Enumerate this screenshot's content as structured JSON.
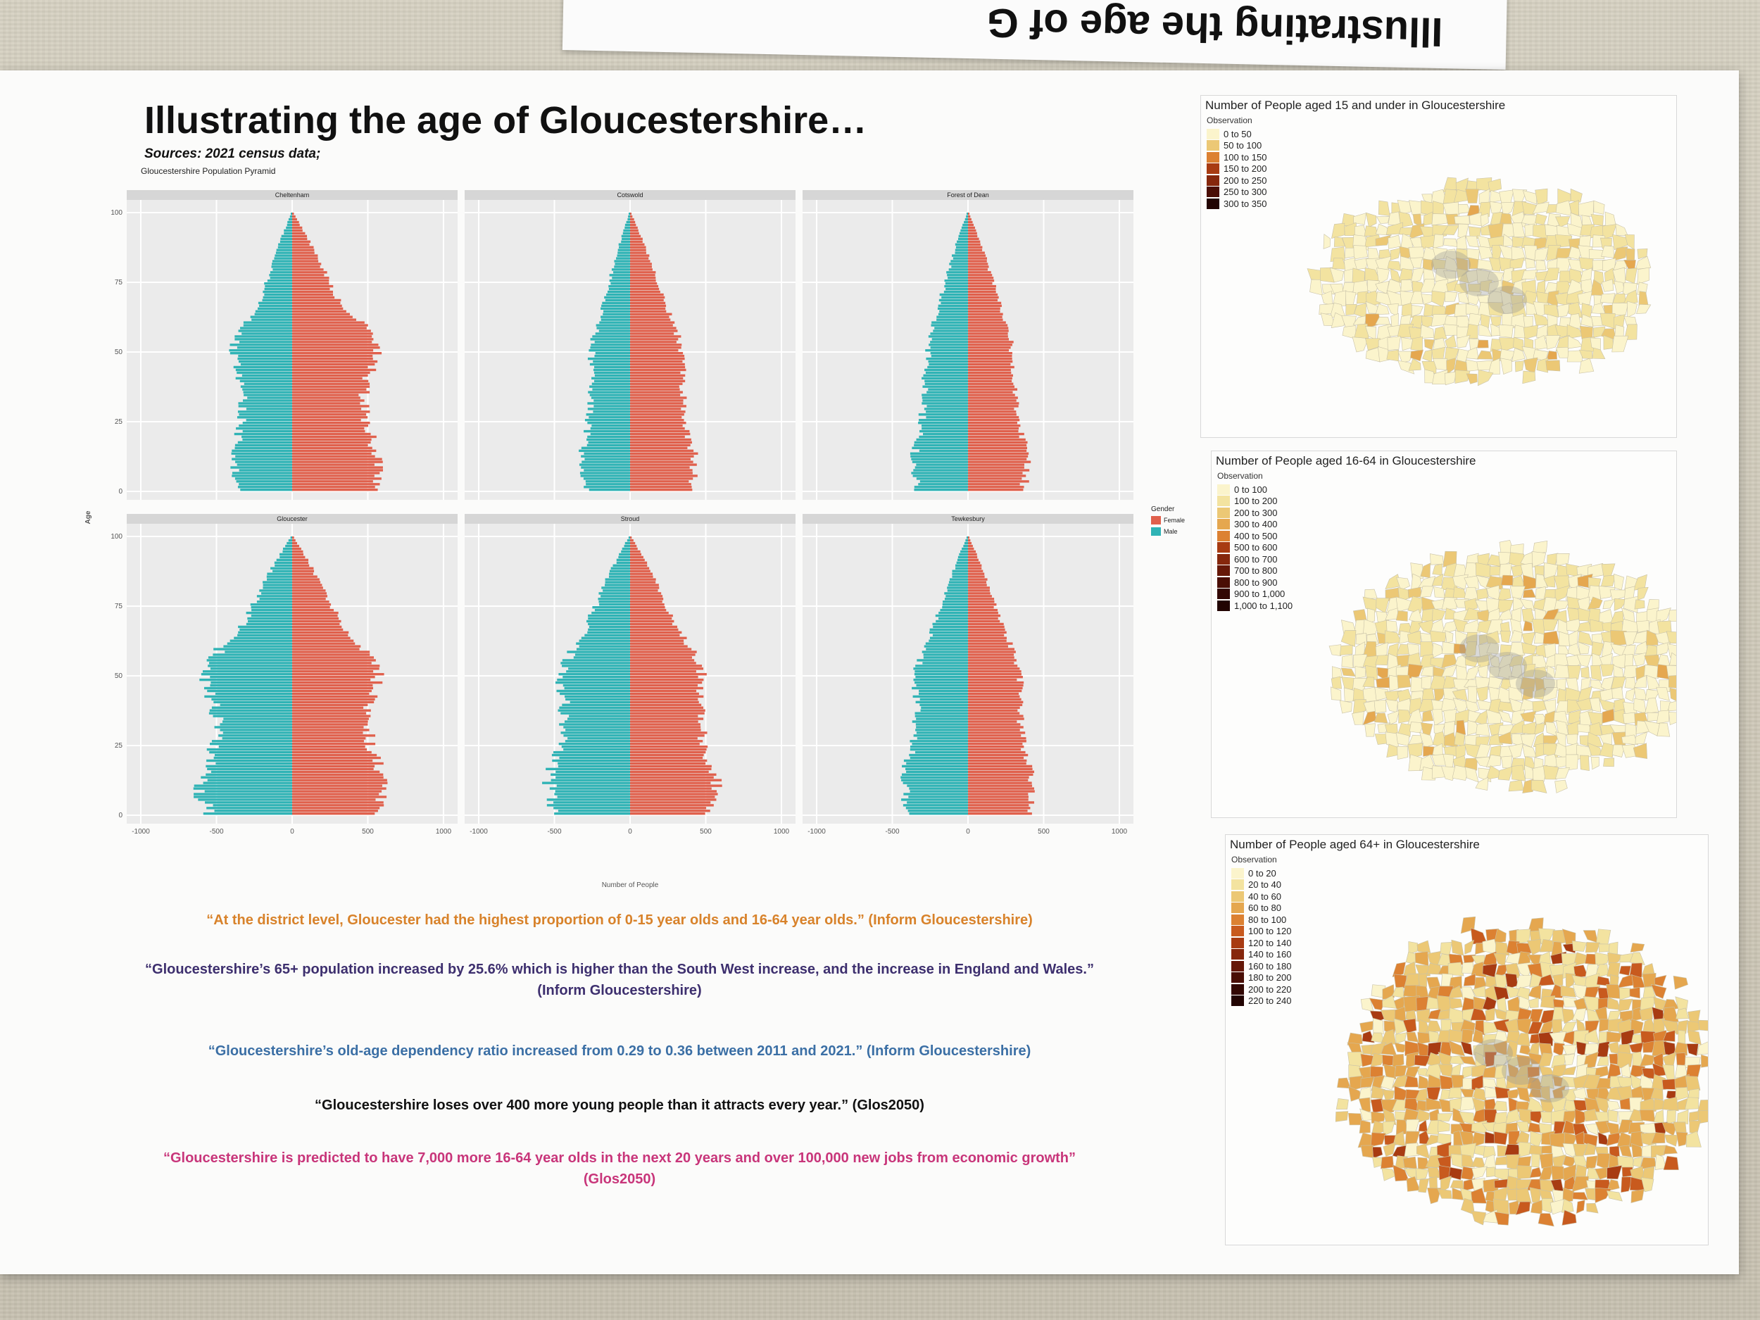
{
  "top_sheet_text": "Illustrating the age of G",
  "poster": {
    "title": "Illustrating the age of Gloucestershire…",
    "sources": "Sources: 2021 census data;",
    "pyramid_caption": "Gloucestershire Population Pyramid"
  },
  "pyramid": {
    "y_label": "Age",
    "x_label": "Number of People",
    "y_ticks": [
      "0",
      "25",
      "50",
      "75",
      "100"
    ],
    "x_ticks": [
      "-1000",
      "-500",
      "0",
      "500",
      "1000"
    ],
    "panels": [
      "Cheltenham",
      "Cotswold",
      "Forest of Dean",
      "Gloucester",
      "Stroud",
      "Tewkesbury"
    ],
    "legend_title": "Gender",
    "legend_items": [
      {
        "label": "Female",
        "color": "#e0604c"
      },
      {
        "label": "Male",
        "color": "#2fb3b5"
      }
    ]
  },
  "quotes": [
    "“At the district level, Gloucester had the highest proportion of 0-15 year olds and 16-64 year olds.” (Inform Gloucestershire)",
    "“Gloucestershire’s 65+ population increased by 25.6% which is higher than the South West increase, and the increase in England and Wales.”",
    "(Inform Gloucestershire)",
    "“Gloucestershire’s old-age dependency ratio increased from 0.29 to 0.36 between 2011 and 2021.” (Inform Gloucestershire)",
    "“Gloucestershire loses over 400 more young people than it attracts every year.” (Glos2050)",
    "“Gloucestershire is predicted to have 7,000 more 16-64 year olds in the next 20 years and over 100,000 new jobs from economic growth”",
    "(Glos2050)"
  ],
  "maps": [
    {
      "title": "Number of People aged 15 and under in Gloucestershire",
      "observation": "Observation",
      "legend": [
        "0 to 50",
        "50 to 100",
        "100 to 150",
        "150 to 200",
        "200 to 250",
        "250 to 300",
        "300 to 350"
      ]
    },
    {
      "title": "Number of People aged 16-64 in Gloucestershire",
      "observation": "Observation",
      "legend": [
        "0 to 100",
        "100 to 200",
        "200 to 300",
        "300 to 400",
        "400 to 500",
        "500 to 600",
        "600 to 700",
        "700 to 800",
        "800 to 900",
        "900 to 1,000",
        "1,000 to 1,100"
      ]
    },
    {
      "title": "Number of People aged 64+ in Gloucestershire",
      "observation": "Observation",
      "legend": [
        "0 to 20",
        "20 to 40",
        "40 to 60",
        "60 to 80",
        "80 to 100",
        "100 to 120",
        "120 to 140",
        "140 to 160",
        "160 to 180",
        "180 to 200",
        "200 to 220",
        "220 to 240"
      ]
    }
  ],
  "colors": {
    "female": "#e0604c",
    "male": "#2fb3b5",
    "ramp": [
      "#fbf4cc",
      "#f3e3a0",
      "#ecc875",
      "#e5a74f",
      "#dc8132",
      "#c85a1e",
      "#a83b12",
      "#86270c",
      "#661808",
      "#4a0e05",
      "#330803",
      "#220402"
    ]
  }
}
